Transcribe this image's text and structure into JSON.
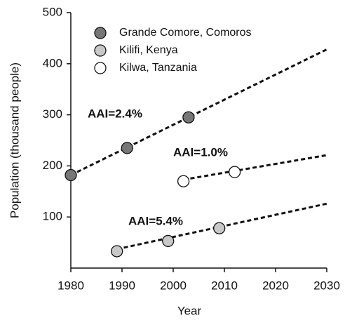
{
  "chart_data": {
    "type": "scatter",
    "x_label": "Year",
    "y_label": "Population (thousand people)",
    "xlim": [
      1980,
      2030
    ],
    "xticks": [
      1980,
      1990,
      2000,
      2010,
      2020,
      2030
    ],
    "ylim": [
      0,
      500
    ],
    "yticks": [
      100,
      200,
      300,
      400,
      500
    ],
    "legend": "upper left",
    "series": [
      {
        "name": "Grande Comore, Comoros",
        "color": "#777777",
        "x": [
          1980,
          1991,
          2003
        ],
        "values": [
          182,
          235,
          295
        ],
        "trend": {
          "x": [
            1980,
            2030
          ],
          "values": [
            182,
            428
          ]
        }
      },
      {
        "name": "Kilifi, Kenya",
        "color": "#c8c8c8",
        "x": [
          1989,
          1999,
          2009
        ],
        "values": [
          33,
          53,
          78
        ],
        "trend": {
          "x": [
            1989,
            2030
          ],
          "values": [
            37,
            126
          ]
        }
      },
      {
        "name": "Kilwa, Tanzania",
        "color": "#ffffff",
        "x": [
          2002,
          2012
        ],
        "values": [
          170,
          188
        ],
        "trend": {
          "x": [
            2002,
            2030
          ],
          "values": [
            173,
            221
          ]
        }
      }
    ],
    "annotations": [
      "AAI=2.4%",
      "AAI=1.0%",
      "AAI=5.4%"
    ]
  }
}
